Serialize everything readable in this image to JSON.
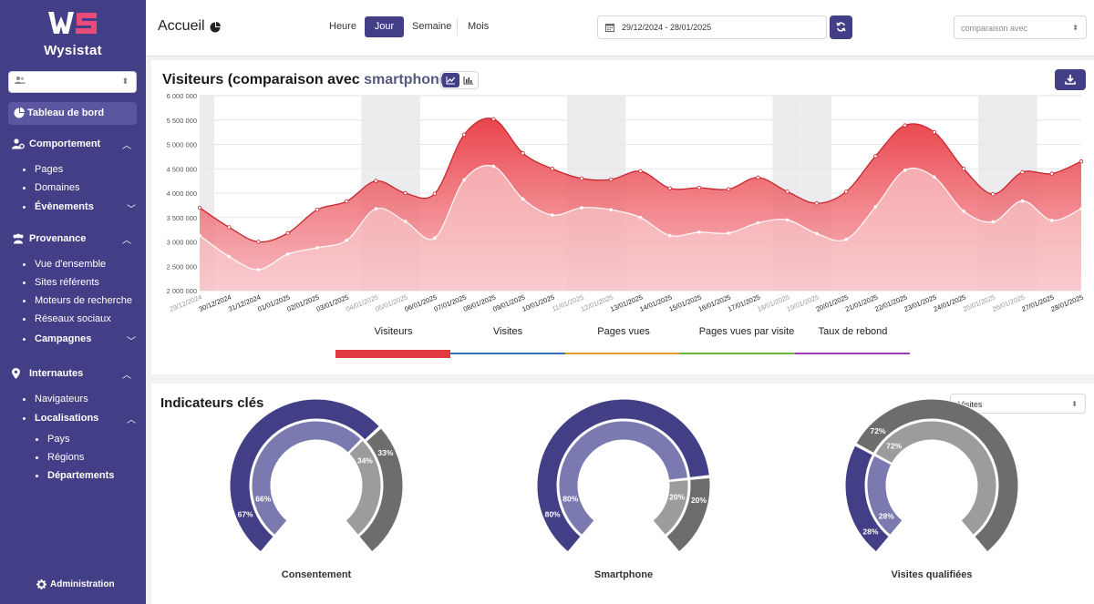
{
  "app": {
    "name": "Wysistat"
  },
  "sidebar": {
    "dashboard": "Tableau de bord",
    "sections": [
      {
        "label": "Comportement",
        "items": [
          "Pages",
          "Domaines",
          "Évènements"
        ]
      },
      {
        "label": "Provenance",
        "items": [
          "Vue d'ensemble",
          "Sites référents",
          "Moteurs de recherche",
          "Réseaux sociaux",
          "Campagnes"
        ]
      },
      {
        "label": "Internautes",
        "items": [
          "Navigateurs",
          "Localisations"
        ],
        "subitems": [
          "Pays",
          "Régions",
          "Départements"
        ]
      }
    ],
    "admin": "Administration"
  },
  "header": {
    "title": "Accueil",
    "periods": [
      "Heure",
      "Jour",
      "Semaine",
      "Mois"
    ],
    "active_period": "Jour",
    "date_range": "29/12/2024 - 28/01/2025",
    "compare_placeholder": "comparaison avec"
  },
  "chart_panel": {
    "title_prefix": "Visiteurs (comparaison avec ",
    "title_highlight": "smartphone",
    "title_suffix": ")",
    "metric_tabs": [
      "Visiteurs",
      "Visites",
      "Pages vues",
      "Pages vues par visite",
      "Taux de rebond"
    ],
    "metric_colors": [
      "#e0393f",
      "#3a6fc0",
      "#e39a2c",
      "#69b83a",
      "#9a3bb8"
    ],
    "active_metric": "Visiteurs"
  },
  "chart_data": {
    "type": "area",
    "x": [
      "29/12/2024",
      "30/12/2024",
      "31/12/2024",
      "01/01/2025",
      "02/01/2025",
      "03/01/2025",
      "04/01/2025",
      "05/01/2025",
      "06/01/2025",
      "07/01/2025",
      "08/01/2025",
      "09/01/2025",
      "10/01/2025",
      "11/01/2025",
      "12/01/2025",
      "13/01/2025",
      "14/01/2025",
      "15/01/2025",
      "16/01/2025",
      "17/01/2025",
      "18/01/2025",
      "19/01/2025",
      "20/01/2025",
      "21/01/2025",
      "22/01/2025",
      "23/01/2025",
      "24/01/2025",
      "25/01/2025",
      "26/01/2025",
      "27/01/2025",
      "28/01/2025"
    ],
    "weekend_days": [
      "29/12/2024",
      "04/01/2025",
      "05/01/2025",
      "11/01/2025",
      "12/01/2025",
      "18/01/2025",
      "19/01/2025",
      "25/01/2025",
      "26/01/2025"
    ],
    "series": [
      {
        "values": [
          3700000,
          3300000,
          3000000,
          3180000,
          3660000,
          3830000,
          4250000,
          4000000,
          3990000,
          5200000,
          5520000,
          4820000,
          4500000,
          4300000,
          4280000,
          4450000,
          4100000,
          4110000,
          4080000,
          4320000,
          4030000,
          3790000,
          4030000,
          4760000,
          5390000,
          5250000,
          4500000,
          3980000,
          4430000,
          4400000,
          4650000
        ],
        "color": "#e03a40"
      },
      {
        "values": [
          3130000,
          2700000,
          2430000,
          2750000,
          2880000,
          3030000,
          3680000,
          3420000,
          3080000,
          4270000,
          4550000,
          3880000,
          3550000,
          3700000,
          3660000,
          3500000,
          3130000,
          3200000,
          3180000,
          3390000,
          3450000,
          3170000,
          3050000,
          3720000,
          4470000,
          4330000,
          3630000,
          3410000,
          3840000,
          3440000,
          3680000
        ],
        "color": "#f5a9b0"
      }
    ],
    "ylim": [
      2000000,
      6000000
    ],
    "yticks": [
      "6 000 000",
      "5 500 000",
      "5 000 000",
      "4 500 000",
      "4 000 000",
      "3 500 000",
      "3 000 000",
      "2 500 000",
      "2 000 000"
    ],
    "grid": true
  },
  "kpi": {
    "title": "Indicateurs clés",
    "select_value": "Visites",
    "gauges": [
      {
        "label": "Consentement",
        "outer": [
          67,
          33
        ],
        "inner": [
          66,
          34
        ]
      },
      {
        "label": "Smartphone",
        "outer": [
          80,
          20
        ],
        "inner": [
          80,
          20
        ]
      },
      {
        "label": "Visites qualifiées",
        "outer": [
          28,
          72
        ],
        "inner": [
          28,
          72
        ]
      }
    ],
    "colors": {
      "outer_a": "#433f86",
      "outer_b": "#6d6d6d",
      "inner_a": "#7b7ab0",
      "inner_b": "#9c9c9c"
    }
  }
}
